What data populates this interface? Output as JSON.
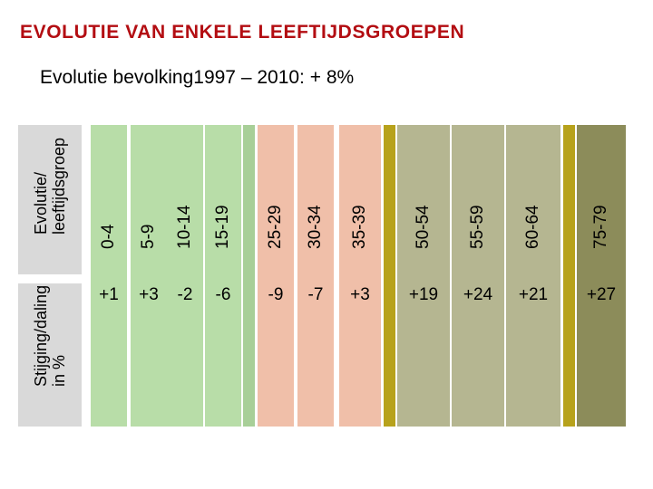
{
  "title": "EVOLUTIE VAN ENKELE LEEFTIJDSGROEPEN",
  "subtitle": "Evolutie bevolking1997 – 2010: + 8%",
  "row_labels": {
    "header_line1": "Evolutie/",
    "header_line2": "leeftijdsgroep",
    "values_line1": "Stijging/daling",
    "values_line2": "in %"
  },
  "colors": {
    "title": "#b30d12",
    "young": "#b8dda8",
    "young_separator": "#a8cf98",
    "middle": "#f0bfa9",
    "middle_separator": "#b9a28f",
    "older": "#b5b691",
    "older_separator": "#b7a21c",
    "oldest": "#8c8c5a",
    "row_label_bg": "#d9d9d9"
  },
  "groups": [
    {
      "age": "0-4",
      "change": "+1"
    },
    {
      "age": "5-9",
      "change": "+3"
    },
    {
      "age": "10-14",
      "change": "-2"
    },
    {
      "age": "15-19",
      "change": "-6"
    },
    {
      "age": "25-29",
      "change": "-9"
    },
    {
      "age": "30-34",
      "change": "-7"
    },
    {
      "age": "35-39",
      "change": "+3"
    },
    {
      "age": "50-54",
      "change": "+19"
    },
    {
      "age": "55-59",
      "change": "+24"
    },
    {
      "age": "60-64",
      "change": "+21"
    },
    {
      "age": "75-79",
      "change": "+27"
    }
  ]
}
